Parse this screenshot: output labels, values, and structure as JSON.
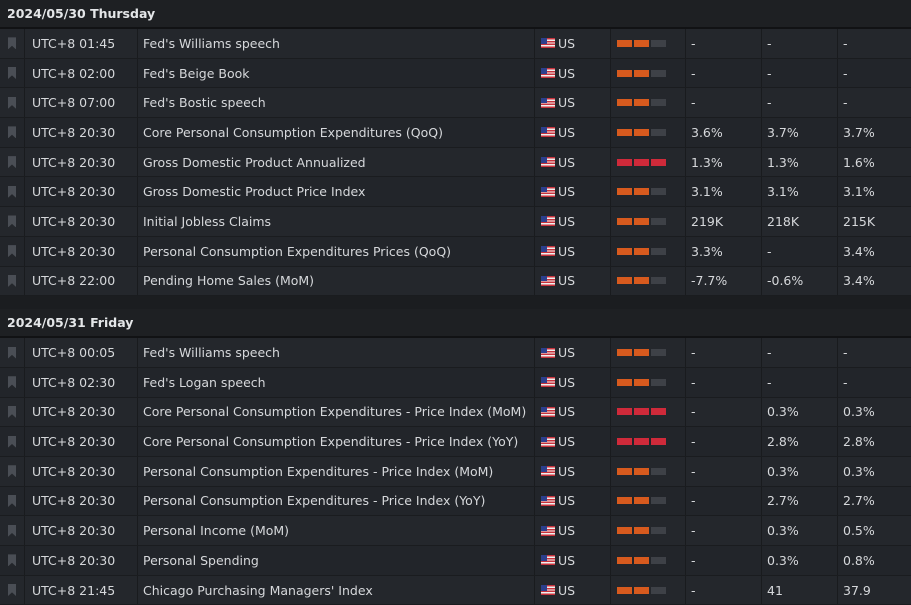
{
  "days": [
    {
      "header": "2024/05/30 Thursday",
      "events": [
        {
          "time": "UTC+8 01:45",
          "event": "Fed's Williams speech",
          "country": "US",
          "importance": 2,
          "actual": "-",
          "forecast": "-",
          "previous": "-"
        },
        {
          "time": "UTC+8 02:00",
          "event": "Fed's Beige Book",
          "country": "US",
          "importance": 2,
          "actual": "-",
          "forecast": "-",
          "previous": "-"
        },
        {
          "time": "UTC+8 07:00",
          "event": "Fed's Bostic speech",
          "country": "US",
          "importance": 2,
          "actual": "-",
          "forecast": "-",
          "previous": "-"
        },
        {
          "time": "UTC+8 20:30",
          "event": "Core Personal Consumption Expenditures (QoQ)",
          "country": "US",
          "importance": 2,
          "actual": "3.6%",
          "forecast": "3.7%",
          "previous": "3.7%"
        },
        {
          "time": "UTC+8 20:30",
          "event": "Gross Domestic Product Annualized",
          "country": "US",
          "importance": 3,
          "actual": "1.3%",
          "forecast": "1.3%",
          "previous": "1.6%"
        },
        {
          "time": "UTC+8 20:30",
          "event": "Gross Domestic Product Price Index",
          "country": "US",
          "importance": 2,
          "actual": "3.1%",
          "forecast": "3.1%",
          "previous": "3.1%"
        },
        {
          "time": "UTC+8 20:30",
          "event": "Initial Jobless Claims",
          "country": "US",
          "importance": 2,
          "actual": "219K",
          "forecast": "218K",
          "previous": "215K"
        },
        {
          "time": "UTC+8 20:30",
          "event": "Personal Consumption Expenditures Prices (QoQ)",
          "country": "US",
          "importance": 2,
          "actual": "3.3%",
          "forecast": "-",
          "previous": "3.4%"
        },
        {
          "time": "UTC+8 22:00",
          "event": "Pending Home Sales (MoM)",
          "country": "US",
          "importance": 2,
          "actual": "-7.7%",
          "forecast": "-0.6%",
          "previous": "3.4%"
        }
      ]
    },
    {
      "header": "2024/05/31 Friday",
      "events": [
        {
          "time": "UTC+8 00:05",
          "event": "Fed's Williams speech",
          "country": "US",
          "importance": 2,
          "actual": "-",
          "forecast": "-",
          "previous": "-"
        },
        {
          "time": "UTC+8 02:30",
          "event": "Fed's Logan speech",
          "country": "US",
          "importance": 2,
          "actual": "-",
          "forecast": "-",
          "previous": "-"
        },
        {
          "time": "UTC+8 20:30",
          "event": "Core Personal Consumption Expenditures - Price Index (MoM)",
          "country": "US",
          "importance": 3,
          "actual": "-",
          "forecast": "0.3%",
          "previous": "0.3%"
        },
        {
          "time": "UTC+8 20:30",
          "event": "Core Personal Consumption Expenditures - Price Index (YoY)",
          "country": "US",
          "importance": 3,
          "actual": "-",
          "forecast": "2.8%",
          "previous": "2.8%"
        },
        {
          "time": "UTC+8 20:30",
          "event": "Personal Consumption Expenditures - Price Index (MoM)",
          "country": "US",
          "importance": 2,
          "actual": "-",
          "forecast": "0.3%",
          "previous": "0.3%"
        },
        {
          "time": "UTC+8 20:30",
          "event": "Personal Consumption Expenditures - Price Index (YoY)",
          "country": "US",
          "importance": 2,
          "actual": "-",
          "forecast": "2.7%",
          "previous": "2.7%"
        },
        {
          "time": "UTC+8 20:30",
          "event": "Personal Income (MoM)",
          "country": "US",
          "importance": 2,
          "actual": "-",
          "forecast": "0.3%",
          "previous": "0.5%"
        },
        {
          "time": "UTC+8 20:30",
          "event": "Personal Spending",
          "country": "US",
          "importance": 2,
          "actual": "-",
          "forecast": "0.3%",
          "previous": "0.8%"
        },
        {
          "time": "UTC+8 21:45",
          "event": "Chicago Purchasing Managers' Index",
          "country": "US",
          "importance": 2,
          "actual": "-",
          "forecast": "41",
          "previous": "37.9"
        }
      ]
    }
  ],
  "colors": {
    "importance_medium": "#d75a1e",
    "importance_high": "#cf2a3a",
    "importance_off": "#3e4147"
  },
  "icons": {
    "bookmark": "bookmark-icon",
    "flag": "us-flag-icon"
  }
}
